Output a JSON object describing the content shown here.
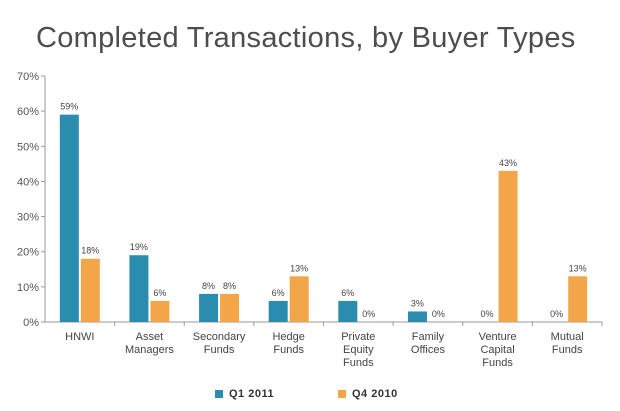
{
  "chart_data": {
    "type": "bar",
    "title": "Completed Transactions, by Buyer Types",
    "xlabel": "",
    "ylabel": "",
    "ylim": [
      0,
      70
    ],
    "yticks": [
      "0%",
      "10%",
      "20%",
      "30%",
      "40%",
      "50%",
      "60%",
      "70%"
    ],
    "grid": false,
    "legend_position": "bottom",
    "categories": [
      [
        "HNWI"
      ],
      [
        "Asset",
        "Managers"
      ],
      [
        "Secondary",
        "Funds"
      ],
      [
        "Hedge",
        "Funds"
      ],
      [
        "Private",
        "Equity",
        "Funds"
      ],
      [
        "Family",
        "Offices"
      ],
      [
        "Venture",
        "Capital",
        "Funds"
      ],
      [
        "Mutual",
        "Funds"
      ]
    ],
    "series": [
      {
        "name": "Q1 2011",
        "color": "#2a8db0",
        "values": [
          59,
          19,
          8,
          6,
          6,
          3,
          0,
          0
        ],
        "labels": [
          "59%",
          "19%",
          "8%",
          "6%",
          "6%",
          "3%",
          "0%",
          "0%"
        ]
      },
      {
        "name": "Q4 2010",
        "color": "#f2a649",
        "values": [
          18,
          6,
          8,
          13,
          0,
          0,
          43,
          13
        ],
        "labels": [
          "18%",
          "6%",
          "8%",
          "13%",
          "0%",
          "0%",
          "43%",
          "13%"
        ]
      }
    ]
  }
}
